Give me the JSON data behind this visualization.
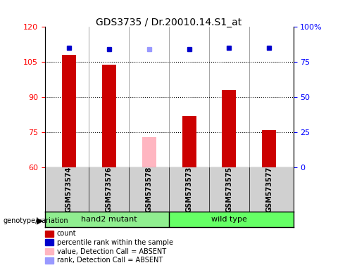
{
  "title": "GDS3735 / Dr.20010.14.S1_at",
  "samples": [
    "GSM573574",
    "GSM573576",
    "GSM573578",
    "GSM573573",
    "GSM573575",
    "GSM573577"
  ],
  "groups": [
    "hand2 mutant",
    "hand2 mutant",
    "hand2 mutant",
    "wild type",
    "wild type",
    "wild type"
  ],
  "group_colors": {
    "hand2 mutant": "#90EE90",
    "wild type": "#66FF66"
  },
  "absent_flags": [
    false,
    false,
    true,
    false,
    false,
    false
  ],
  "count_values": [
    108,
    104,
    73,
    82,
    93,
    76
  ],
  "percentile_values": [
    85,
    84,
    84,
    84,
    85,
    85
  ],
  "ylim_left": [
    60,
    120
  ],
  "ylim_right": [
    0,
    100
  ],
  "left_ticks": [
    60,
    75,
    90,
    105,
    120
  ],
  "right_ticks": [
    0,
    25,
    50,
    75,
    100
  ],
  "right_tick_labels": [
    "0",
    "25",
    "50",
    "75",
    "100%"
  ],
  "bar_color_present": "#CC0000",
  "bar_color_absent": "#FFB6C1",
  "square_color_present": "#0000CC",
  "square_color_absent": "#9999FF",
  "group_bg_colors": [
    "#d0d0d0",
    "#d0d0d0",
    "#d0d0d0"
  ],
  "legend_items": [
    {
      "label": "count",
      "color": "#CC0000",
      "marker": "s"
    },
    {
      "label": "percentile rank within the sample",
      "color": "#0000CC",
      "marker": "s"
    },
    {
      "label": "value, Detection Call = ABSENT",
      "color": "#FFB6C1",
      "marker": "s"
    },
    {
      "label": "rank, Detection Call = ABSENT",
      "color": "#9999FF",
      "marker": "s"
    }
  ]
}
